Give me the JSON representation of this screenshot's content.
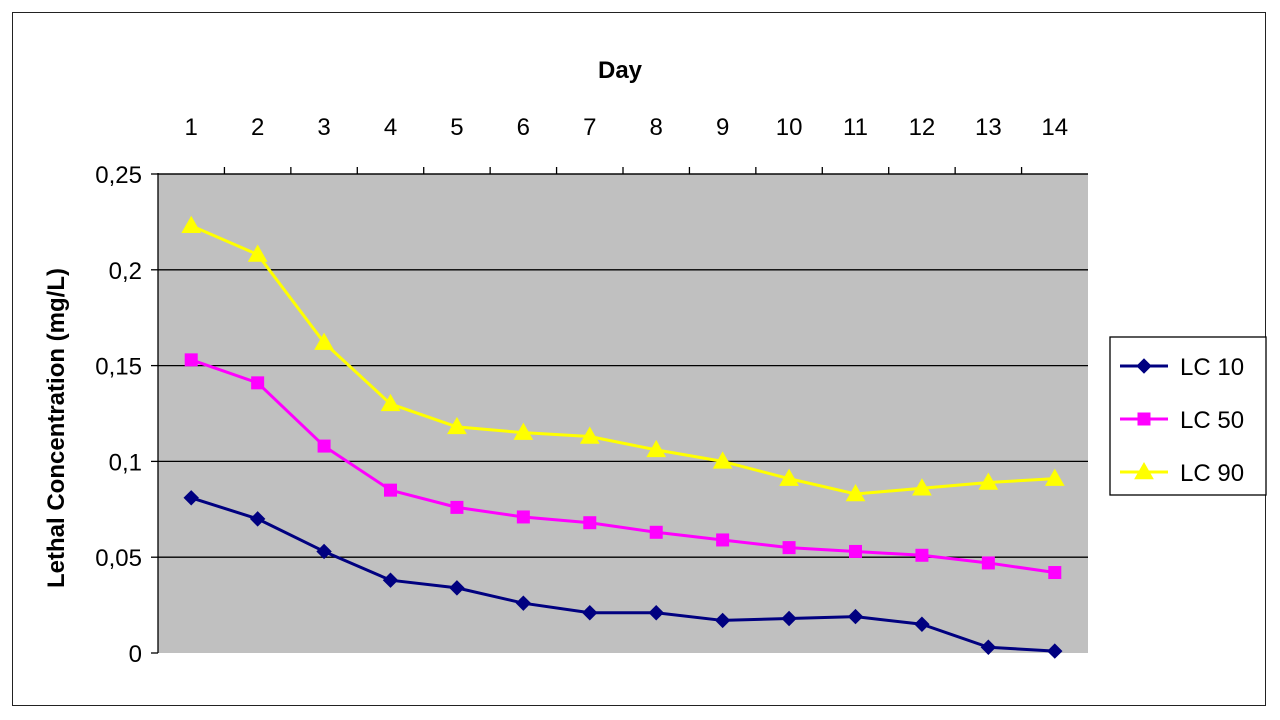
{
  "chart_data": {
    "type": "line",
    "title": "",
    "xlabel": "Day",
    "ylabel": "Lethal Concentration (mg/L)",
    "x": [
      1,
      2,
      3,
      4,
      5,
      6,
      7,
      8,
      9,
      10,
      11,
      12,
      13,
      14
    ],
    "x_tick_labels": [
      "1",
      "2",
      "3",
      "4",
      "5",
      "6",
      "7",
      "8",
      "9",
      "10",
      "11",
      "12",
      "13",
      "14"
    ],
    "x_axis_position": "top",
    "ylim": [
      0,
      0.25
    ],
    "y_ticks": [
      0,
      0.05,
      0.1,
      0.15,
      0.2,
      0.25
    ],
    "y_tick_labels": [
      "0",
      "0,05",
      "0,1",
      "0,15",
      "0,2",
      "0,25"
    ],
    "grid": true,
    "plot_background": "#c0c0c0",
    "legend_position": "right",
    "series": [
      {
        "name": "LC 10",
        "color": "#000080",
        "marker": "diamond",
        "values": [
          0.081,
          0.07,
          0.053,
          0.038,
          0.034,
          0.026,
          0.021,
          0.021,
          0.017,
          0.018,
          0.019,
          0.015,
          0.003,
          0.001
        ]
      },
      {
        "name": "LC 50",
        "color": "#ff00ff",
        "marker": "square",
        "values": [
          0.153,
          0.141,
          0.108,
          0.085,
          0.076,
          0.071,
          0.068,
          0.063,
          0.059,
          0.055,
          0.053,
          0.051,
          0.047,
          0.042
        ]
      },
      {
        "name": "LC 90",
        "color": "#ffff00",
        "marker": "triangle",
        "values": [
          0.223,
          0.208,
          0.162,
          0.13,
          0.118,
          0.115,
          0.113,
          0.106,
          0.1,
          0.091,
          0.083,
          0.086,
          0.089,
          0.091
        ]
      }
    ]
  }
}
